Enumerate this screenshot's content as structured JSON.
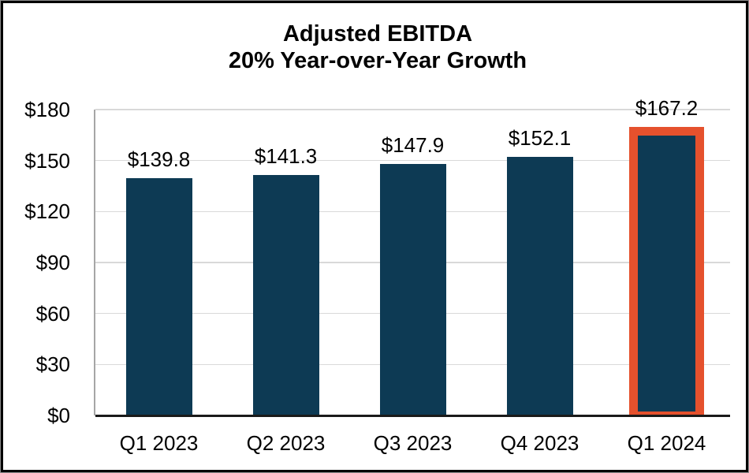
{
  "chart_data": {
    "type": "bar",
    "title": "Adjusted EBITDA",
    "subtitle": "20% Year-over-Year Growth",
    "categories": [
      "Q1 2023",
      "Q2 2023",
      "Q3 2023",
      "Q4 2023",
      "Q1 2024"
    ],
    "values": [
      139.8,
      141.3,
      147.9,
      152.1,
      167.2
    ],
    "bar_labels": [
      "$139.8",
      "$141.3",
      "$147.9",
      "$152.1",
      "$167.2"
    ],
    "y_ticks": [
      "$180",
      "$150",
      "$120",
      "$90",
      "$60",
      "$30",
      "$0"
    ],
    "y_tick_values": [
      180,
      150,
      120,
      90,
      60,
      30,
      0
    ],
    "ylim": [
      0,
      180
    ],
    "xlabel": "",
    "ylabel": "",
    "legend": "none",
    "grid": "horizontal",
    "highlighted_index": 4,
    "colors": {
      "bar": "#0d3a54",
      "highlight_border": "#e5512d",
      "gridline": "#d9d9d9",
      "axis_line": "#a6a6a6",
      "baseline": "#1a1a1a",
      "text": "#000000",
      "background": "#ffffff",
      "frame_border": "#000000"
    }
  }
}
